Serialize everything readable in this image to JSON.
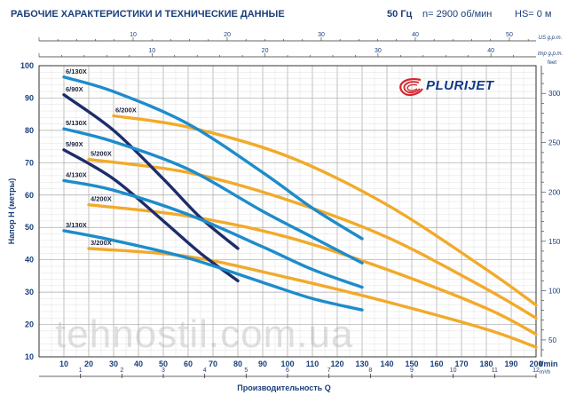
{
  "header": {
    "title": "РАБОЧИЕ ХАРАКТЕРИСТИКИ И ТЕХНИЧЕСКИЕ ДАННЫЕ",
    "frequency": "50 Гц",
    "speed": "n= 2900 об/мин",
    "hs": "HS= 0 м"
  },
  "logo": {
    "text": "PLURIJET",
    "icon": "swirl-logo-icon"
  },
  "watermark": "tehnostil.com.ua",
  "colors": {
    "blue_curves": "#1e8ccb",
    "yellow_curves": "#f2aa2a",
    "navy_curves": "#1d2d6b",
    "axis_text": "#1a3f7a"
  },
  "chart_data": {
    "type": "line",
    "title": "",
    "xlabel": "Производительность Q",
    "xunit": "l/min",
    "ylabel": "Напор H (метры)",
    "xlim": [
      0,
      200
    ],
    "ylim": [
      10,
      100
    ],
    "grid": true,
    "x_ticks": [
      "10",
      "20",
      "30",
      "40",
      "50",
      "60",
      "70",
      "80",
      "90",
      "100",
      "110",
      "120",
      "130",
      "140",
      "150",
      "160",
      "170",
      "180",
      "190",
      "200"
    ],
    "y_ticks": [
      "10",
      "20",
      "30",
      "40",
      "50",
      "60",
      "70",
      "80",
      "90",
      "100"
    ],
    "bottom_secondary_axis": {
      "unit": "m³/h",
      "ticks": [
        "1",
        "2",
        "3",
        "4",
        "5",
        "6",
        "7",
        "8",
        "9",
        "10",
        "11",
        "12"
      ]
    },
    "top_axis_us": {
      "unit": "US g.p.m.",
      "ticks": [
        "10",
        "20",
        "30",
        "40",
        "50"
      ]
    },
    "top_axis_imp": {
      "unit": "Imp g.p.m.",
      "ticks": [
        "10",
        "20",
        "30",
        "40"
      ]
    },
    "right_axis": {
      "unit": "feet",
      "ticks": [
        "50",
        "100",
        "150",
        "200",
        "250",
        "300"
      ]
    },
    "series": [
      {
        "name": "6/130X",
        "color": "#1e8ccb",
        "x": [
          10,
          30,
          60,
          90,
          110,
          130
        ],
        "y": [
          96.5,
          92,
          82,
          67,
          56,
          46.5
        ]
      },
      {
        "name": "6/90X",
        "color": "#1d2d6b",
        "x": [
          10,
          30,
          50,
          65,
          80
        ],
        "y": [
          91,
          80,
          65,
          53,
          43.5
        ]
      },
      {
        "name": "6/200X",
        "color": "#f2aa2a",
        "x": [
          30,
          60,
          100,
          140,
          180,
          200
        ],
        "y": [
          84.5,
          81,
          72,
          57,
          37,
          26
        ]
      },
      {
        "name": "5/130X",
        "color": "#1e8ccb",
        "x": [
          10,
          30,
          60,
          90,
          110,
          130
        ],
        "y": [
          80.5,
          76.5,
          68,
          55,
          47,
          39
        ]
      },
      {
        "name": "5/90X",
        "color": "#1d2d6b",
        "x": [
          10,
          30,
          50,
          65,
          80
        ],
        "y": [
          74,
          65,
          52,
          42,
          33.5
        ]
      },
      {
        "name": "5/200X",
        "color": "#f2aa2a",
        "x": [
          20,
          60,
          100,
          140,
          180,
          200
        ],
        "y": [
          71,
          67,
          58.5,
          47,
          31,
          22
        ]
      },
      {
        "name": "4/130X",
        "color": "#1e8ccb",
        "x": [
          10,
          30,
          60,
          90,
          110,
          130
        ],
        "y": [
          64.5,
          61.5,
          54,
          44,
          37,
          31.5
        ]
      },
      {
        "name": "4/200X",
        "color": "#f2aa2a",
        "x": [
          20,
          60,
          100,
          140,
          180,
          200
        ],
        "y": [
          57,
          53.5,
          47,
          37,
          25,
          17
        ]
      },
      {
        "name": "3/130X",
        "color": "#1e8ccb",
        "x": [
          10,
          30,
          60,
          90,
          110,
          130
        ],
        "y": [
          49,
          46,
          40.5,
          33,
          28,
          24.5
        ]
      },
      {
        "name": "3/200X",
        "color": "#f2aa2a",
        "x": [
          20,
          60,
          100,
          140,
          180,
          200
        ],
        "y": [
          43.5,
          41,
          34.5,
          27,
          18.5,
          13
        ]
      }
    ]
  }
}
